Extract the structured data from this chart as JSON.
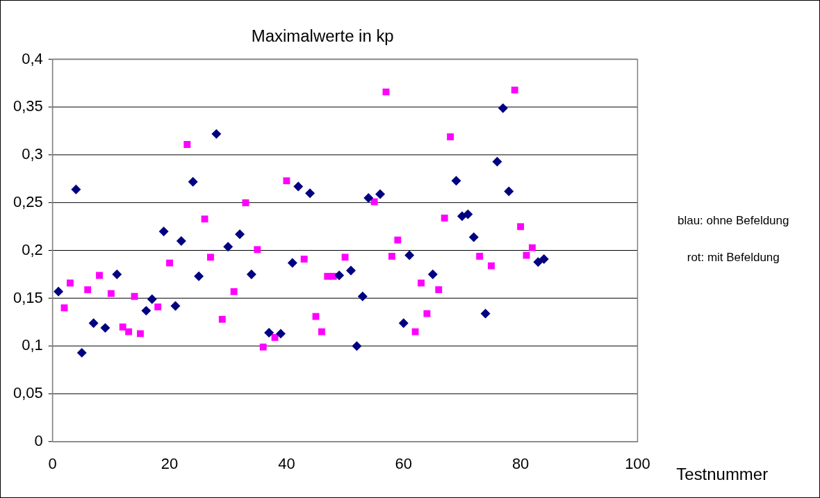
{
  "chart_data": {
    "type": "scatter",
    "title": "Maximalwerte in kp",
    "xlabel": "Testnummer",
    "annotations": [
      "blau: ohne Befeldung",
      "rot: mit Befeldung"
    ],
    "xlim": [
      0,
      100
    ],
    "xticks": [
      0,
      20,
      40,
      60,
      80,
      100
    ],
    "ylim": [
      0,
      0.4
    ],
    "yticks": [
      {
        "value": 0,
        "label": "0"
      },
      {
        "value": 0.05,
        "label": "0,05"
      },
      {
        "value": 0.1,
        "label": "0,1"
      },
      {
        "value": 0.15,
        "label": "0,15"
      },
      {
        "value": 0.2,
        "label": "0,2"
      },
      {
        "value": 0.25,
        "label": "0,25"
      },
      {
        "value": 0.3,
        "label": "0,3"
      },
      {
        "value": 0.35,
        "label": "0,35"
      },
      {
        "value": 0.4,
        "label": "0,4"
      }
    ],
    "grid": "y",
    "legend": false,
    "series": [
      {
        "color": "#000080",
        "marker": "diamond",
        "x": [
          1,
          4,
          5,
          7,
          9,
          11,
          16,
          17,
          19,
          21,
          22,
          24,
          25,
          28,
          30,
          32,
          34,
          37,
          39,
          41,
          42,
          44,
          49,
          51,
          52,
          53,
          54,
          56,
          60,
          61,
          65,
          69,
          70,
          71,
          72,
          74,
          76,
          77,
          78,
          83,
          84
        ],
        "values": [
          0.157,
          0.264,
          0.093,
          0.124,
          0.119,
          0.175,
          0.137,
          0.149,
          0.22,
          0.142,
          0.21,
          0.272,
          0.173,
          0.322,
          0.204,
          0.217,
          0.175,
          0.114,
          0.113,
          0.187,
          0.267,
          0.26,
          0.174,
          0.179,
          0.1,
          0.152,
          0.255,
          0.259,
          0.124,
          0.195,
          0.175,
          0.273,
          0.236,
          0.238,
          0.214,
          0.134,
          0.293,
          0.349,
          0.262,
          0.188,
          0.191
        ]
      },
      {
        "color": "#ff00ff",
        "marker": "square",
        "x": [
          2,
          3,
          6,
          8,
          10,
          12,
          13,
          14,
          15,
          18,
          20,
          23,
          26,
          27,
          29,
          31,
          33,
          35,
          36,
          38,
          40,
          43,
          45,
          46,
          47,
          48,
          50,
          55,
          57,
          58,
          59,
          62,
          63,
          64,
          66,
          67,
          68,
          73,
          75,
          79,
          80,
          81,
          82
        ],
        "values": [
          0.14,
          0.166,
          0.159,
          0.174,
          0.155,
          0.12,
          0.115,
          0.152,
          0.113,
          0.141,
          0.187,
          0.311,
          0.233,
          0.193,
          0.128,
          0.157,
          0.25,
          0.201,
          0.099,
          0.109,
          0.273,
          0.191,
          0.131,
          0.115,
          0.173,
          0.173,
          0.193,
          0.251,
          0.366,
          0.194,
          0.211,
          0.115,
          0.166,
          0.134,
          0.159,
          0.234,
          0.319,
          0.194,
          0.184,
          0.368,
          0.225,
          0.195,
          0.203
        ]
      }
    ]
  }
}
